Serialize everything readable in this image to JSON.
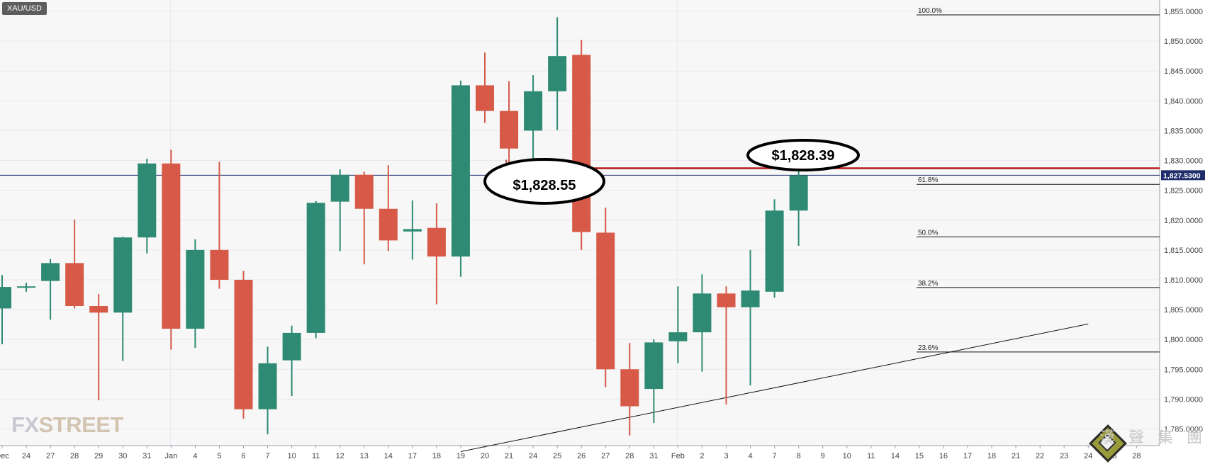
{
  "symbol": "XAU/USD",
  "logo": {
    "fx": "FX",
    "street": "STREET"
  },
  "corner_brand": "漢 聲 集 團",
  "colors": {
    "up": "#2e8a73",
    "down": "#d65a47",
    "resistance": "#b71c1c",
    "price_line": "#1f2d6b",
    "grid": "#e8e8ee",
    "background": "#f7f7f7"
  },
  "chart_data": {
    "type": "candlestick",
    "ylim": [
      1781.5,
      1856.5
    ],
    "yticks": [
      "1,785.0000",
      "1,790.0000",
      "1,795.0000",
      "1,800.0000",
      "1,805.0000",
      "1,810.0000",
      "1,815.0000",
      "1,820.0000",
      "1,825.0000",
      "1,830.0000",
      "1,835.0000",
      "1,840.0000",
      "1,845.0000",
      "1,850.0000",
      "1,855.0000"
    ],
    "ytick_values": [
      1785,
      1790,
      1795,
      1800,
      1805,
      1810,
      1815,
      1820,
      1825,
      1830,
      1835,
      1840,
      1845,
      1850,
      1855
    ],
    "xtick_labels": [
      "Dec",
      "24",
      "27",
      "28",
      "29",
      "30",
      "31",
      "Jan",
      "4",
      "5",
      "6",
      "7",
      "10",
      "11",
      "12",
      "13",
      "14",
      "17",
      "18",
      "19",
      "20",
      "21",
      "24",
      "25",
      "26",
      "27",
      "28",
      "31",
      "Feb",
      "2",
      "3",
      "4",
      "7",
      "8",
      "9",
      "10",
      "11",
      "14",
      "15",
      "16",
      "17",
      "18",
      "21",
      "22",
      "23",
      "24",
      "25",
      "28"
    ],
    "current_price_label": "1,827.5300",
    "current_price": 1827.53,
    "candles": [
      {
        "date": "Dec 23",
        "open": 1805.2,
        "high": 1810.8,
        "low": 1799.2,
        "close": 1808.8
      },
      {
        "date": "Dec 24",
        "open": 1808.8,
        "high": 1809.5,
        "low": 1808.0,
        "close": 1808.9
      },
      {
        "date": "Dec 27",
        "open": 1809.8,
        "high": 1813.5,
        "low": 1803.3,
        "close": 1812.8
      },
      {
        "date": "Dec 28",
        "open": 1812.8,
        "high": 1820.1,
        "low": 1805.2,
        "close": 1805.6
      },
      {
        "date": "Dec 29",
        "open": 1805.6,
        "high": 1807.6,
        "low": 1789.8,
        "close": 1804.5
      },
      {
        "date": "Dec 30",
        "open": 1804.5,
        "high": 1817.2,
        "low": 1796.4,
        "close": 1817.1
      },
      {
        "date": "Dec 31",
        "open": 1817.1,
        "high": 1830.3,
        "low": 1814.4,
        "close": 1829.5
      },
      {
        "date": "Jan 3",
        "open": 1829.5,
        "high": 1831.8,
        "low": 1798.3,
        "close": 1801.8
      },
      {
        "date": "Jan 4",
        "open": 1801.8,
        "high": 1816.8,
        "low": 1798.6,
        "close": 1815.0
      },
      {
        "date": "Jan 5",
        "open": 1815.0,
        "high": 1829.8,
        "low": 1808.5,
        "close": 1810.0
      },
      {
        "date": "Jan 6",
        "open": 1810.0,
        "high": 1811.5,
        "low": 1786.7,
        "close": 1788.3
      },
      {
        "date": "Jan 7",
        "open": 1788.3,
        "high": 1798.8,
        "low": 1784.1,
        "close": 1796.0
      },
      {
        "date": "Jan 10",
        "open": 1796.5,
        "high": 1802.3,
        "low": 1790.5,
        "close": 1801.1
      },
      {
        "date": "Jan 11",
        "open": 1801.1,
        "high": 1823.2,
        "low": 1800.2,
        "close": 1822.9
      },
      {
        "date": "Jan 12",
        "open": 1823.1,
        "high": 1828.5,
        "low": 1814.8,
        "close": 1827.6
      },
      {
        "date": "Jan 13",
        "open": 1827.6,
        "high": 1828.1,
        "low": 1812.6,
        "close": 1821.9
      },
      {
        "date": "Jan 14",
        "open": 1821.9,
        "high": 1829.2,
        "low": 1814.8,
        "close": 1816.6
      },
      {
        "date": "Jan 17",
        "open": 1818.1,
        "high": 1823.3,
        "low": 1813.4,
        "close": 1818.5
      },
      {
        "date": "Jan 18",
        "open": 1818.7,
        "high": 1822.8,
        "low": 1805.9,
        "close": 1813.9
      },
      {
        "date": "Jan 19",
        "open": 1813.9,
        "high": 1843.4,
        "low": 1810.5,
        "close": 1842.6
      },
      {
        "date": "Jan 20",
        "open": 1842.6,
        "high": 1848.1,
        "low": 1836.3,
        "close": 1838.3
      },
      {
        "date": "Jan 21",
        "open": 1838.3,
        "high": 1843.3,
        "low": 1828.6,
        "close": 1832.0
      },
      {
        "date": "Jan 24",
        "open": 1835.0,
        "high": 1844.3,
        "low": 1830.0,
        "close": 1841.6
      },
      {
        "date": "Jan 25",
        "open": 1841.6,
        "high": 1854.0,
        "low": 1835.1,
        "close": 1847.5
      },
      {
        "date": "Jan 26",
        "open": 1847.7,
        "high": 1850.2,
        "low": 1815.0,
        "close": 1818.0
      },
      {
        "date": "Jan 27",
        "open": 1817.9,
        "high": 1822.1,
        "low": 1792.0,
        "close": 1795.0
      },
      {
        "date": "Jan 28",
        "open": 1795.0,
        "high": 1799.4,
        "low": 1783.9,
        "close": 1788.8
      },
      {
        "date": "Jan 31",
        "open": 1791.7,
        "high": 1800.0,
        "low": 1786.0,
        "close": 1799.5
      },
      {
        "date": "Feb 1",
        "open": 1799.7,
        "high": 1808.9,
        "low": 1796.0,
        "close": 1801.2
      },
      {
        "date": "Feb 2",
        "open": 1801.2,
        "high": 1810.9,
        "low": 1794.6,
        "close": 1807.7
      },
      {
        "date": "Feb 3",
        "open": 1807.7,
        "high": 1808.9,
        "low": 1789.1,
        "close": 1805.4
      },
      {
        "date": "Feb 4",
        "open": 1805.4,
        "high": 1815.0,
        "low": 1792.3,
        "close": 1808.2
      },
      {
        "date": "Feb 7",
        "open": 1808.0,
        "high": 1823.5,
        "low": 1807.0,
        "close": 1821.6
      },
      {
        "date": "Feb 8",
        "open": 1821.6,
        "high": 1829.2,
        "low": 1815.7,
        "close": 1827.5
      }
    ],
    "fib_levels": [
      {
        "label": "100.0%",
        "value": 1854.4
      },
      {
        "label": "61.8%",
        "value": 1826.0
      },
      {
        "label": "50.0%",
        "value": 1817.2
      },
      {
        "label": "38.2%",
        "value": 1808.7
      },
      {
        "label": "23.6%",
        "value": 1797.9
      }
    ],
    "resistance": {
      "from": "Jan 21",
      "value": 1828.7
    },
    "trendline": {
      "from": "Jan 19",
      "from_value": 1781.2,
      "to": "Feb 24",
      "to_value": 1802.6
    },
    "annotations": [
      {
        "text": "$1,828.55",
        "anchor_date": "Jan 24",
        "value": 1828.55
      },
      {
        "text": "$1,828.39",
        "anchor_date": "Feb 8",
        "value": 1828.39
      }
    ]
  }
}
